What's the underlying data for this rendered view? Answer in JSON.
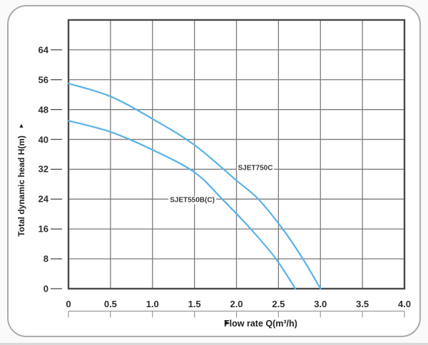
{
  "card": {
    "background": "#ffffff",
    "border_color": "#ababab"
  },
  "chart_data": {
    "type": "line",
    "title": "",
    "xlabel": "Flow rate Q(m³/h)",
    "x_axis_arrow": "►",
    "ylabel": "Total dynamic head H(m)",
    "y_axis_arrow": "▲",
    "xlim": [
      0,
      4.0
    ],
    "ylim": [
      0,
      72
    ],
    "grid": true,
    "grid_x_step": 0.5,
    "grid_y_step": 8,
    "legend_position": "inline-curve-labels",
    "x_ticks": [
      {
        "value": 0,
        "label": "0"
      },
      {
        "value": 0.5,
        "label": "0.5"
      },
      {
        "value": 1.0,
        "label": "1.0"
      },
      {
        "value": 1.5,
        "label": "1.5"
      },
      {
        "value": 2.0,
        "label": "2.0"
      },
      {
        "value": 2.5,
        "label": "2.5"
      },
      {
        "value": 3.0,
        "label": "3.0"
      },
      {
        "value": 3.5,
        "label": "3.5"
      },
      {
        "value": 4.0,
        "label": "4.0"
      }
    ],
    "y_ticks": [
      {
        "value": 0,
        "label": "0"
      },
      {
        "value": 8,
        "label": "8"
      },
      {
        "value": 16,
        "label": "16"
      },
      {
        "value": 24,
        "label": "24"
      },
      {
        "value": 32,
        "label": "32"
      },
      {
        "value": 40,
        "label": "40"
      },
      {
        "value": 48,
        "label": "48"
      },
      {
        "value": 56,
        "label": "56"
      },
      {
        "value": 64,
        "label": "64"
      }
    ],
    "series": [
      {
        "name": "SJET750C",
        "color": "#58b2e8",
        "points": [
          [
            0,
            55
          ],
          [
            0.5,
            51.5
          ],
          [
            1.0,
            45.5
          ],
          [
            1.5,
            38.5
          ],
          [
            2.0,
            29
          ],
          [
            2.26,
            24
          ],
          [
            2.55,
            16
          ],
          [
            2.79,
            8
          ],
          [
            3.0,
            0
          ]
        ],
        "label_q": 2.0,
        "label_h": 32.3
      },
      {
        "name": "SJET550B(C)",
        "color": "#58b2e8",
        "points": [
          [
            0,
            45
          ],
          [
            0.5,
            42
          ],
          [
            1.0,
            37.2
          ],
          [
            1.5,
            31.2
          ],
          [
            1.83,
            24
          ],
          [
            2.17,
            16
          ],
          [
            2.47,
            8
          ],
          [
            2.7,
            0
          ]
        ],
        "label_q": 1.19,
        "label_h": 23.7
      }
    ],
    "colors": {
      "grid": "#7a7a7a",
      "frame": "#4a4a4a",
      "ruler": "#9b9b9b",
      "text": "#2f2f2f",
      "curve": "#58b2e8"
    }
  }
}
